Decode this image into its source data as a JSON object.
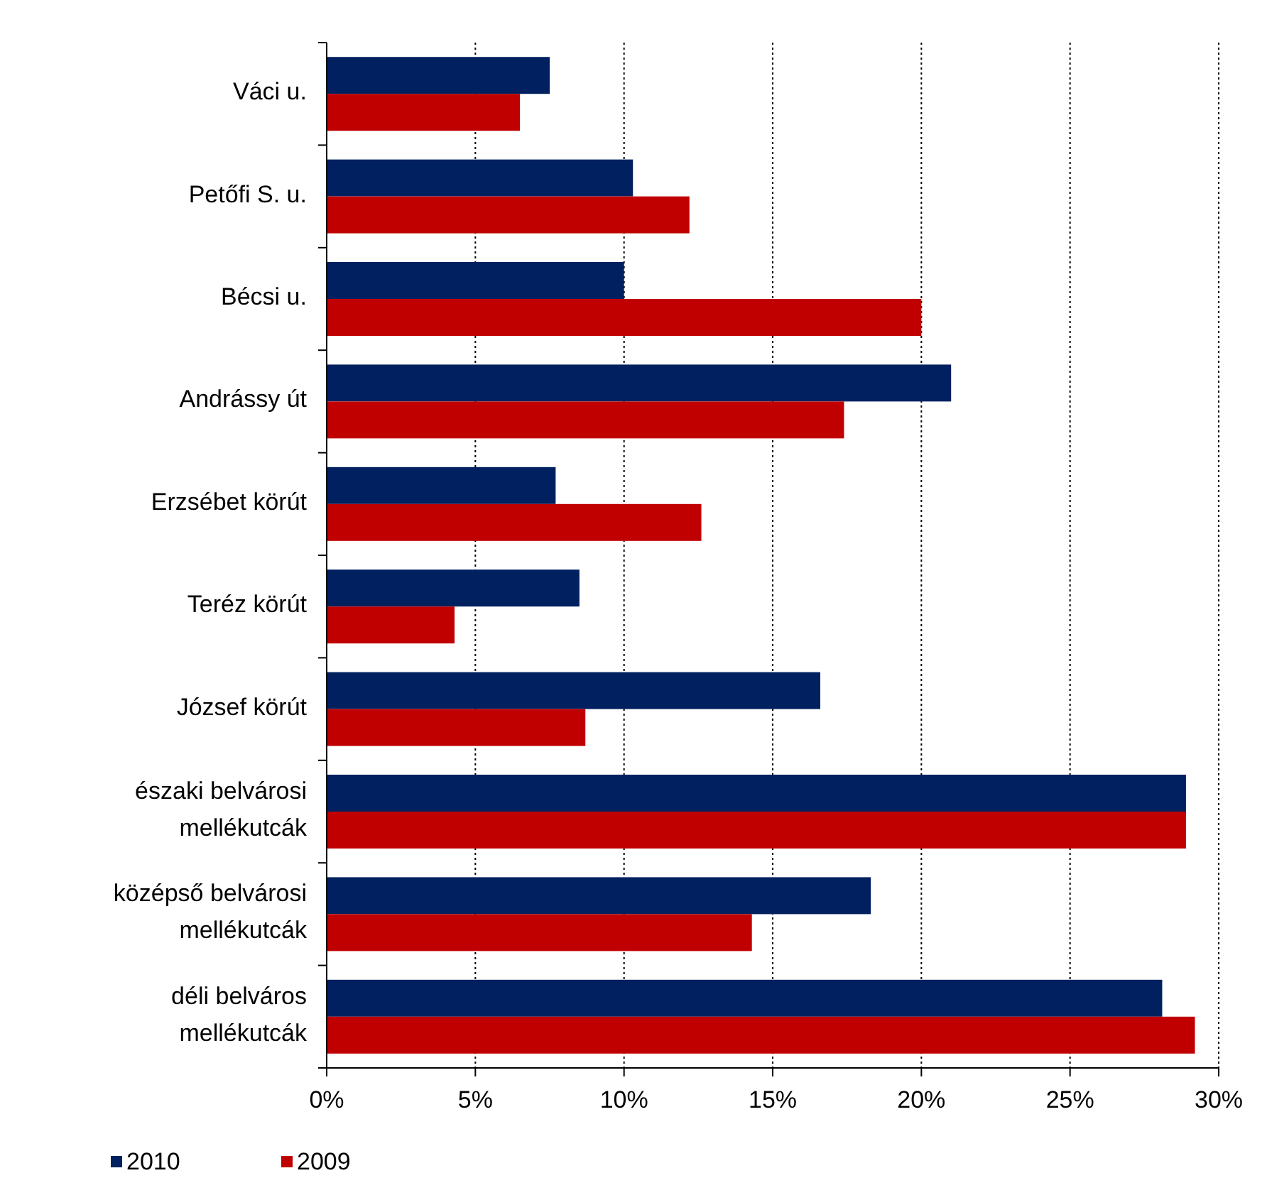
{
  "chart_data": {
    "type": "bar",
    "orientation": "horizontal",
    "categories": [
      "Váci u.",
      "Petőfi S. u.",
      "Bécsi u.",
      "Andrássy út",
      "Erzsébet körút",
      "Teréz körút",
      "József körút",
      "északi belvárosi\nmellékutcák",
      "középső belvárosi\nmellékutcák",
      "déli belváros\nmellékutcák"
    ],
    "series": [
      {
        "name": "2010",
        "color": "#002060",
        "values": [
          7.5,
          10.3,
          10.0,
          21.0,
          7.7,
          8.5,
          16.6,
          28.9,
          18.3,
          28.1
        ]
      },
      {
        "name": "2009",
        "color": "#c00000",
        "values": [
          6.5,
          12.2,
          20.0,
          17.4,
          12.6,
          4.3,
          8.7,
          28.9,
          14.3,
          29.2
        ]
      }
    ],
    "xlim": [
      0,
      30
    ],
    "xticks": [
      {
        "value": 0,
        "label": "0%"
      },
      {
        "value": 5,
        "label": "5%"
      },
      {
        "value": 10,
        "label": "10%"
      },
      {
        "value": 15,
        "label": "15%"
      },
      {
        "value": 20,
        "label": "20%"
      },
      {
        "value": 25,
        "label": "25%"
      },
      {
        "value": 30,
        "label": "30%"
      }
    ],
    "grid": "x",
    "legend": "bottom left"
  }
}
